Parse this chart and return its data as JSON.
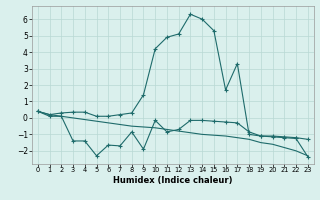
{
  "x": [
    0,
    1,
    2,
    3,
    4,
    5,
    6,
    7,
    8,
    9,
    10,
    11,
    12,
    13,
    14,
    15,
    16,
    17,
    18,
    19,
    20,
    21,
    22,
    23
  ],
  "line1": [
    0.4,
    0.2,
    0.3,
    0.35,
    0.35,
    0.1,
    0.1,
    0.2,
    0.3,
    1.4,
    4.2,
    4.9,
    5.1,
    6.3,
    6.0,
    5.3,
    1.7,
    3.3,
    -1.0,
    -1.1,
    -1.1,
    -1.15,
    -1.2,
    -1.3
  ],
  "line2": [
    0.4,
    0.1,
    0.1,
    -1.4,
    -1.4,
    -2.3,
    -1.65,
    -1.7,
    -0.85,
    -1.9,
    -0.15,
    -0.85,
    -0.7,
    -0.15,
    -0.15,
    -0.2,
    -0.25,
    -0.3,
    -0.85,
    -1.1,
    -1.15,
    -1.2,
    -1.25,
    -2.35
  ],
  "line3": [
    0.4,
    0.2,
    0.1,
    0.0,
    -0.1,
    -0.2,
    -0.3,
    -0.4,
    -0.5,
    -0.55,
    -0.6,
    -0.7,
    -0.8,
    -0.9,
    -1.0,
    -1.05,
    -1.1,
    -1.2,
    -1.3,
    -1.5,
    -1.6,
    -1.8,
    -2.0,
    -2.3
  ],
  "bg_color": "#daf0ed",
  "line_color": "#1e6b6b",
  "grid_color": "#b8d8d4",
  "xlabel": "Humidex (Indice chaleur)",
  "ylim": [
    -2.8,
    6.8
  ],
  "xlim": [
    -0.5,
    23.5
  ],
  "yticks": [
    -2,
    -1,
    0,
    1,
    2,
    3,
    4,
    5,
    6
  ],
  "xticks": [
    0,
    1,
    2,
    3,
    4,
    5,
    6,
    7,
    8,
    9,
    10,
    11,
    12,
    13,
    14,
    15,
    16,
    17,
    18,
    19,
    20,
    21,
    22,
    23
  ]
}
